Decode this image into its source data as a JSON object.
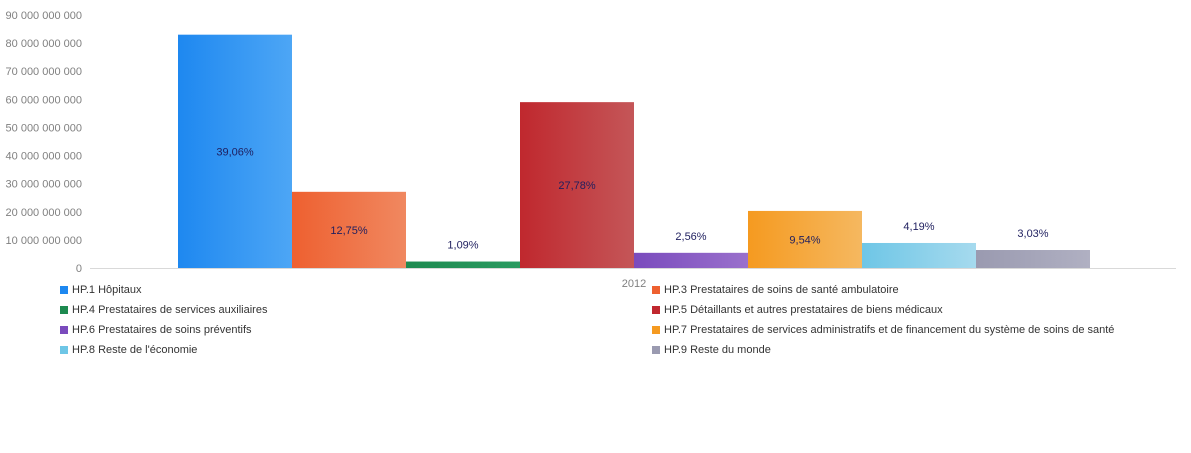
{
  "chart_data": {
    "type": "bar",
    "categories": [
      "2012"
    ],
    "ylim": [
      0,
      90000000000
    ],
    "yticks": [
      {
        "value": 0,
        "label": "0"
      },
      {
        "value": 10000000000,
        "label": "10 000 000 000"
      },
      {
        "value": 20000000000,
        "label": "20 000 000 000"
      },
      {
        "value": 30000000000,
        "label": "30 000 000 000"
      },
      {
        "value": 40000000000,
        "label": "40 000 000 000"
      },
      {
        "value": 50000000000,
        "label": "50 000 000 000"
      },
      {
        "value": 60000000000,
        "label": "60 000 000 000"
      },
      {
        "value": 70000000000,
        "label": "70 000 000 000"
      },
      {
        "value": 80000000000,
        "label": "80 000 000 000"
      },
      {
        "value": 90000000000,
        "label": "90 000 000 000"
      }
    ],
    "grid": false,
    "legend_position": "bottom",
    "series": [
      {
        "name": "HP.1 Hôpitaux",
        "values": [
          83000000000
        ],
        "label": "39,06%",
        "color": "#1e88f0",
        "color2": "#4da6f5"
      },
      {
        "name": "HP.3 Prestataires de soins de santé ambulatoire",
        "values": [
          27100000000
        ],
        "label": "12,75%",
        "color": "#ee6030",
        "color2": "#f08860"
      },
      {
        "name": "HP.4 Prestataires de services auxiliaires",
        "values": [
          2300000000
        ],
        "label": "1,09%",
        "color": "#1e8a50",
        "color2": "#2a9a60"
      },
      {
        "name": "HP.5 Détaillants et autres prestataires de biens médicaux",
        "values": [
          59000000000
        ],
        "label": "27,78%",
        "color": "#c0282e",
        "color2": "#c45658"
      },
      {
        "name": "HP.6 Prestataires de soins préventifs",
        "values": [
          5400000000
        ],
        "label": "2,56%",
        "color": "#7a4bbd",
        "color2": "#9a70cc"
      },
      {
        "name": "HP.7 Prestataires de services administratifs et de financement du système de soins de santé",
        "values": [
          20300000000
        ],
        "label": "9,54%",
        "color": "#f59a20",
        "color2": "#f5b860"
      },
      {
        "name": "HP.8 Reste de l'économie",
        "values": [
          8900000000
        ],
        "label": "4,19%",
        "color": "#6ec6e6",
        "color2": "#a6daee"
      },
      {
        "name": "HP.9 Reste du monde",
        "values": [
          6400000000
        ],
        "label": "3,03%",
        "color": "#9a9ab0",
        "color2": "#b0b0c2"
      }
    ]
  }
}
